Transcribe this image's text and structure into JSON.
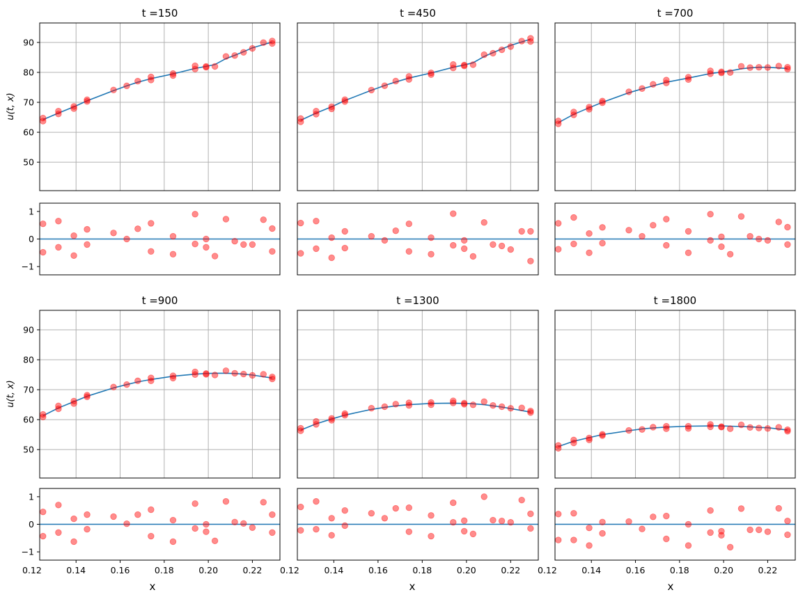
{
  "chart_data": {
    "type": "scatter",
    "xlabel": "x",
    "ylabel": "u(t, x)",
    "main_ylim": [
      40.5,
      96.5
    ],
    "main_yticks": [
      50,
      60,
      70,
      80,
      90
    ],
    "resid_ylim": [
      -1.3,
      1.3
    ],
    "resid_yticks": [
      -1,
      0,
      1
    ],
    "xlim": [
      0.1235,
      0.2325
    ],
    "xticks": [
      0.12,
      0.14,
      0.16,
      0.18,
      0.2,
      0.22
    ],
    "xtick_labels": [
      "0.12",
      "0.14",
      "0.16",
      "0.18",
      "0.20",
      "0.22"
    ],
    "colors": {
      "fit_line": "#1f77b4",
      "points": "#ff0000",
      "grid": "#b0b0b0"
    },
    "x": [
      0.125,
      0.125,
      0.132,
      0.132,
      0.139,
      0.139,
      0.145,
      0.145,
      0.157,
      0.163,
      0.168,
      0.174,
      0.174,
      0.184,
      0.184,
      0.194,
      0.194,
      0.199,
      0.199,
      0.203,
      0.208,
      0.212,
      0.216,
      0.22,
      0.225,
      0.229,
      0.229
    ],
    "panels": [
      {
        "title": "t =150",
        "fit": [
          64.2,
          66.4,
          68.5,
          70.5,
          73.9,
          75.5,
          76.7,
          77.9,
          79.5,
          81.3,
          82.0,
          82.6,
          84.6,
          85.7,
          86.9,
          88.2,
          90.1
        ],
        "fit_x": [
          0.125,
          0.132,
          0.139,
          0.145,
          0.157,
          0.163,
          0.168,
          0.174,
          0.184,
          0.194,
          0.199,
          0.203,
          0.208,
          0.212,
          0.216,
          0.22,
          0.229
        ],
        "resid": [
          0.55,
          -0.48,
          0.65,
          -0.3,
          0.12,
          -0.6,
          0.35,
          -0.2,
          0.22,
          0.0,
          0.37,
          0.57,
          -0.45,
          0.1,
          -0.55,
          0.9,
          -0.18,
          -0.3,
          0.0,
          -0.62,
          0.72,
          -0.08,
          -0.2,
          -0.2,
          0.7,
          0.38,
          -0.45
        ]
      },
      {
        "title": "t =450",
        "fit": [
          64.0,
          66.4,
          68.5,
          70.6,
          74.0,
          75.6,
          76.8,
          78.1,
          79.8,
          81.7,
          82.5,
          83.2,
          85.3,
          86.6,
          87.8,
          89.0,
          91.1
        ],
        "fit_x": [
          0.125,
          0.132,
          0.139,
          0.145,
          0.157,
          0.163,
          0.168,
          0.174,
          0.184,
          0.194,
          0.199,
          0.203,
          0.208,
          0.212,
          0.216,
          0.22,
          0.229
        ],
        "resid": [
          0.58,
          -0.52,
          0.65,
          -0.35,
          0.05,
          -0.68,
          0.28,
          -0.33,
          0.1,
          -0.05,
          0.3,
          0.55,
          -0.45,
          0.05,
          -0.55,
          0.92,
          -0.23,
          -0.35,
          -0.05,
          -0.63,
          0.6,
          -0.2,
          -0.25,
          -0.38,
          0.28,
          0.28,
          -0.8
        ]
      },
      {
        "title": "t =700",
        "fit": [
          63.2,
          66.0,
          68.2,
          70.0,
          73.2,
          74.5,
          75.5,
          76.7,
          78.1,
          79.6,
          80.1,
          80.5,
          81.2,
          81.5,
          81.7,
          81.7,
          81.3
        ],
        "fit_x": [
          0.125,
          0.132,
          0.139,
          0.145,
          0.157,
          0.163,
          0.168,
          0.174,
          0.184,
          0.194,
          0.199,
          0.203,
          0.208,
          0.212,
          0.216,
          0.22,
          0.229
        ],
        "resid": [
          0.57,
          -0.37,
          0.78,
          -0.18,
          0.2,
          -0.5,
          0.42,
          -0.15,
          0.32,
          0.1,
          0.5,
          0.72,
          -0.23,
          0.28,
          -0.5,
          0.9,
          -0.05,
          -0.28,
          0.08,
          -0.55,
          0.82,
          0.1,
          0.0,
          -0.05,
          0.62,
          0.43,
          -0.2
        ]
      },
      {
        "title": "t =900",
        "fit": [
          61.3,
          63.9,
          66.0,
          67.8,
          70.6,
          71.7,
          72.6,
          73.4,
          74.5,
          75.2,
          75.4,
          75.5,
          75.5,
          75.4,
          75.2,
          74.9,
          73.9
        ],
        "fit_x": [
          0.125,
          0.132,
          0.139,
          0.145,
          0.157,
          0.163,
          0.168,
          0.174,
          0.184,
          0.194,
          0.199,
          0.203,
          0.208,
          0.212,
          0.216,
          0.22,
          0.229
        ],
        "resid": [
          0.45,
          -0.43,
          0.7,
          -0.3,
          0.2,
          -0.63,
          0.35,
          -0.18,
          0.28,
          0.02,
          0.35,
          0.53,
          -0.43,
          0.15,
          -0.63,
          0.75,
          -0.15,
          -0.27,
          0.0,
          -0.6,
          0.83,
          0.08,
          0.03,
          -0.12,
          0.8,
          0.35,
          -0.3
        ]
      },
      {
        "title": "t =1300",
        "fit": [
          56.5,
          58.6,
          60.2,
          61.5,
          63.4,
          64.1,
          64.6,
          65.0,
          65.4,
          65.5,
          65.4,
          65.3,
          65.0,
          64.6,
          64.2,
          63.7,
          62.5
        ],
        "fit_x": [
          0.125,
          0.132,
          0.139,
          0.145,
          0.157,
          0.163,
          0.168,
          0.174,
          0.184,
          0.194,
          0.199,
          0.203,
          0.208,
          0.212,
          0.216,
          0.22,
          0.229
        ],
        "resid": [
          0.63,
          -0.22,
          0.83,
          -0.18,
          0.22,
          -0.4,
          0.5,
          -0.05,
          0.4,
          0.22,
          0.58,
          0.6,
          -0.27,
          0.32,
          -0.43,
          0.78,
          0.07,
          -0.25,
          0.13,
          -0.35,
          1.0,
          0.15,
          0.12,
          0.07,
          0.88,
          0.38,
          -0.15
        ]
      },
      {
        "title": "t =1800",
        "fit": [
          51.0,
          52.8,
          54.0,
          55.0,
          56.3,
          56.9,
          57.2,
          57.5,
          57.8,
          57.9,
          57.9,
          57.8,
          57.7,
          57.6,
          57.4,
          57.3,
          56.5
        ],
        "fit_x": [
          0.125,
          0.132,
          0.139,
          0.145,
          0.157,
          0.163,
          0.168,
          0.174,
          0.184,
          0.194,
          0.199,
          0.203,
          0.208,
          0.212,
          0.216,
          0.22,
          0.229
        ],
        "resid": [
          0.37,
          -0.57,
          0.4,
          -0.57,
          -0.13,
          -0.77,
          0.08,
          -0.33,
          0.1,
          -0.17,
          0.27,
          0.3,
          -0.53,
          0.0,
          -0.77,
          0.5,
          -0.3,
          -0.25,
          -0.4,
          -0.83,
          0.57,
          -0.2,
          -0.2,
          -0.27,
          0.58,
          0.12,
          -0.38
        ]
      }
    ]
  }
}
